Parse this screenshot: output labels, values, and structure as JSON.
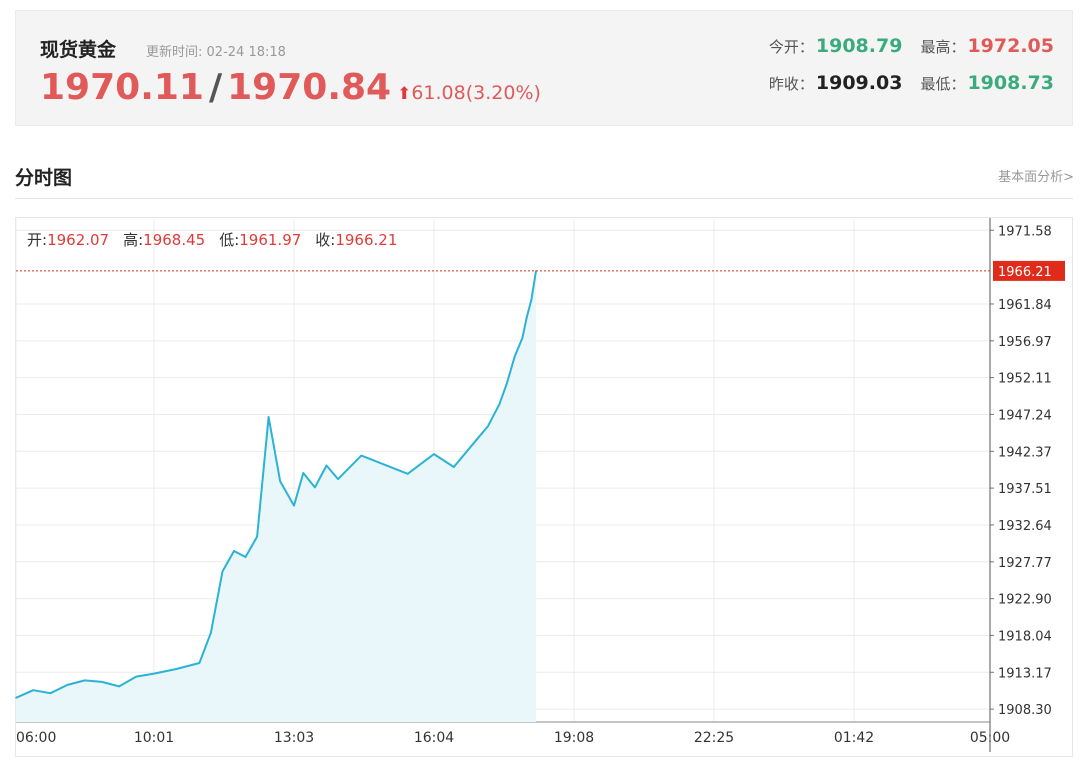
{
  "header": {
    "name": "现货黄金",
    "update_label": "更新时间:",
    "update_time": "02-24 18:18",
    "bid": "1970.11",
    "separator": "/",
    "ask": "1970.84",
    "arrow": "⬆",
    "change": "61.08(3.20%)",
    "stats": {
      "open_label": "今开：",
      "open": "1908.79",
      "high_label": "最高：",
      "high": "1972.05",
      "prev_close_label": "昨收：",
      "prev_close": "1909.03",
      "low_label": "最低：",
      "low": "1908.73"
    }
  },
  "section": {
    "title": "分时图",
    "link": "基本面分析>"
  },
  "ohlc": {
    "open_label": "开:",
    "open": "1962.07",
    "high_label": "高:",
    "high": "1968.45",
    "low_label": "低:",
    "low": "1961.97",
    "close_label": "收:",
    "close": "1966.21"
  },
  "colors": {
    "line": "#2ab3d4",
    "area": "#e9f6fa",
    "current": "#e02a1a",
    "up": "#e05a5a",
    "down": "#3aab7f"
  },
  "chart_data": {
    "type": "area",
    "title": "分时图",
    "xlabel": "",
    "ylabel": "",
    "x_ticks": [
      "06:00",
      "10:01",
      "13:03",
      "16:04",
      "19:08",
      "22:25",
      "01:42",
      "05:00"
    ],
    "y_ticks": [
      "1971.58",
      "1961.84",
      "1956.97",
      "1952.11",
      "1947.24",
      "1942.37",
      "1937.51",
      "1932.64",
      "1927.77",
      "1922.90",
      "1918.04",
      "1913.17",
      "1908.30"
    ],
    "ylim": [
      1906.6,
      1973.2
    ],
    "current_price": "1966.21",
    "grid": true,
    "x": [
      "06:00",
      "06:30",
      "07:00",
      "07:30",
      "08:00",
      "08:30",
      "09:00",
      "09:30",
      "10:01",
      "10:30",
      "11:00",
      "11:15",
      "11:30",
      "11:45",
      "12:00",
      "12:15",
      "12:30",
      "12:45",
      "13:03",
      "13:15",
      "13:30",
      "13:45",
      "14:00",
      "14:30",
      "15:00",
      "15:30",
      "16:04",
      "16:30",
      "17:00",
      "17:15",
      "17:30",
      "17:40",
      "17:50",
      "18:00",
      "18:06",
      "18:12",
      "18:18"
    ],
    "series": [
      {
        "values": [
          1909.8,
          1910.8,
          1910.4,
          1911.5,
          1912.1,
          1911.9,
          1911.3,
          1912.6,
          1913.0,
          1913.6,
          1914.4,
          1918.4,
          1926.5,
          1929.2,
          1928.4,
          1931.1,
          1946.9,
          1938.4,
          1935.2,
          1939.5,
          1937.6,
          1940.5,
          1938.7,
          1941.8,
          1940.6,
          1939.4,
          1942.0,
          1940.3,
          1943.9,
          1945.7,
          1948.6,
          1951.4,
          1954.9,
          1957.3,
          1960.1,
          1962.4,
          1966.21
        ]
      }
    ]
  }
}
